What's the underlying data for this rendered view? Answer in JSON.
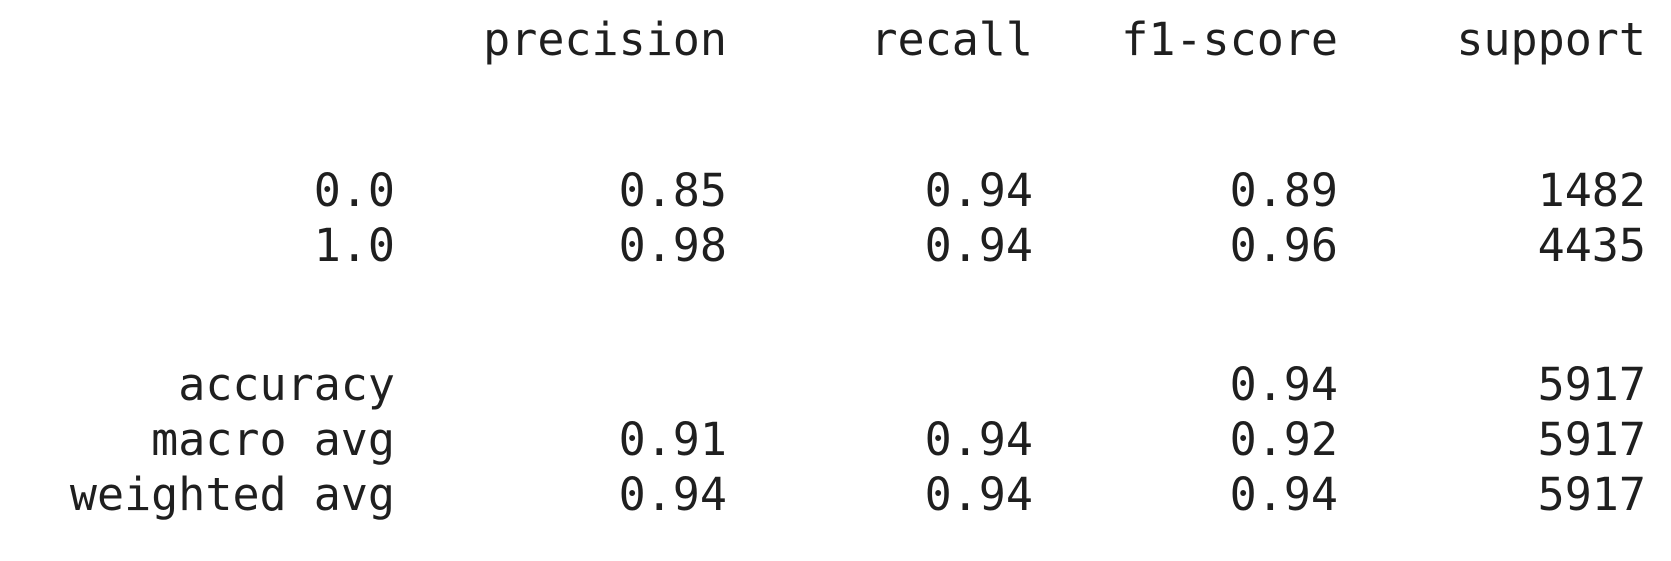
{
  "columns": {
    "precision": "precision",
    "recall": "recall",
    "f1_score": "f1-score",
    "support": "support"
  },
  "rows": [
    {
      "label": "0.0",
      "precision": "0.85",
      "recall": "0.94",
      "f1_score": "0.89",
      "support": "1482"
    },
    {
      "label": "1.0",
      "precision": "0.98",
      "recall": "0.94",
      "f1_score": "0.96",
      "support": "4435"
    }
  ],
  "summary": {
    "accuracy": {
      "label": "accuracy",
      "precision": "",
      "recall": "",
      "f1_score": "0.94",
      "support": "5917"
    },
    "macro_avg": {
      "label": "macro avg",
      "precision": "0.91",
      "recall": "0.94",
      "f1_score": "0.92",
      "support": "5917"
    },
    "weighted_avg": {
      "label": "weighted avg",
      "precision": "0.94",
      "recall": "0.94",
      "f1_score": "0.94",
      "support": "5917"
    }
  },
  "colors": {
    "text": "#1f1f1f",
    "background": "#ffffff"
  }
}
